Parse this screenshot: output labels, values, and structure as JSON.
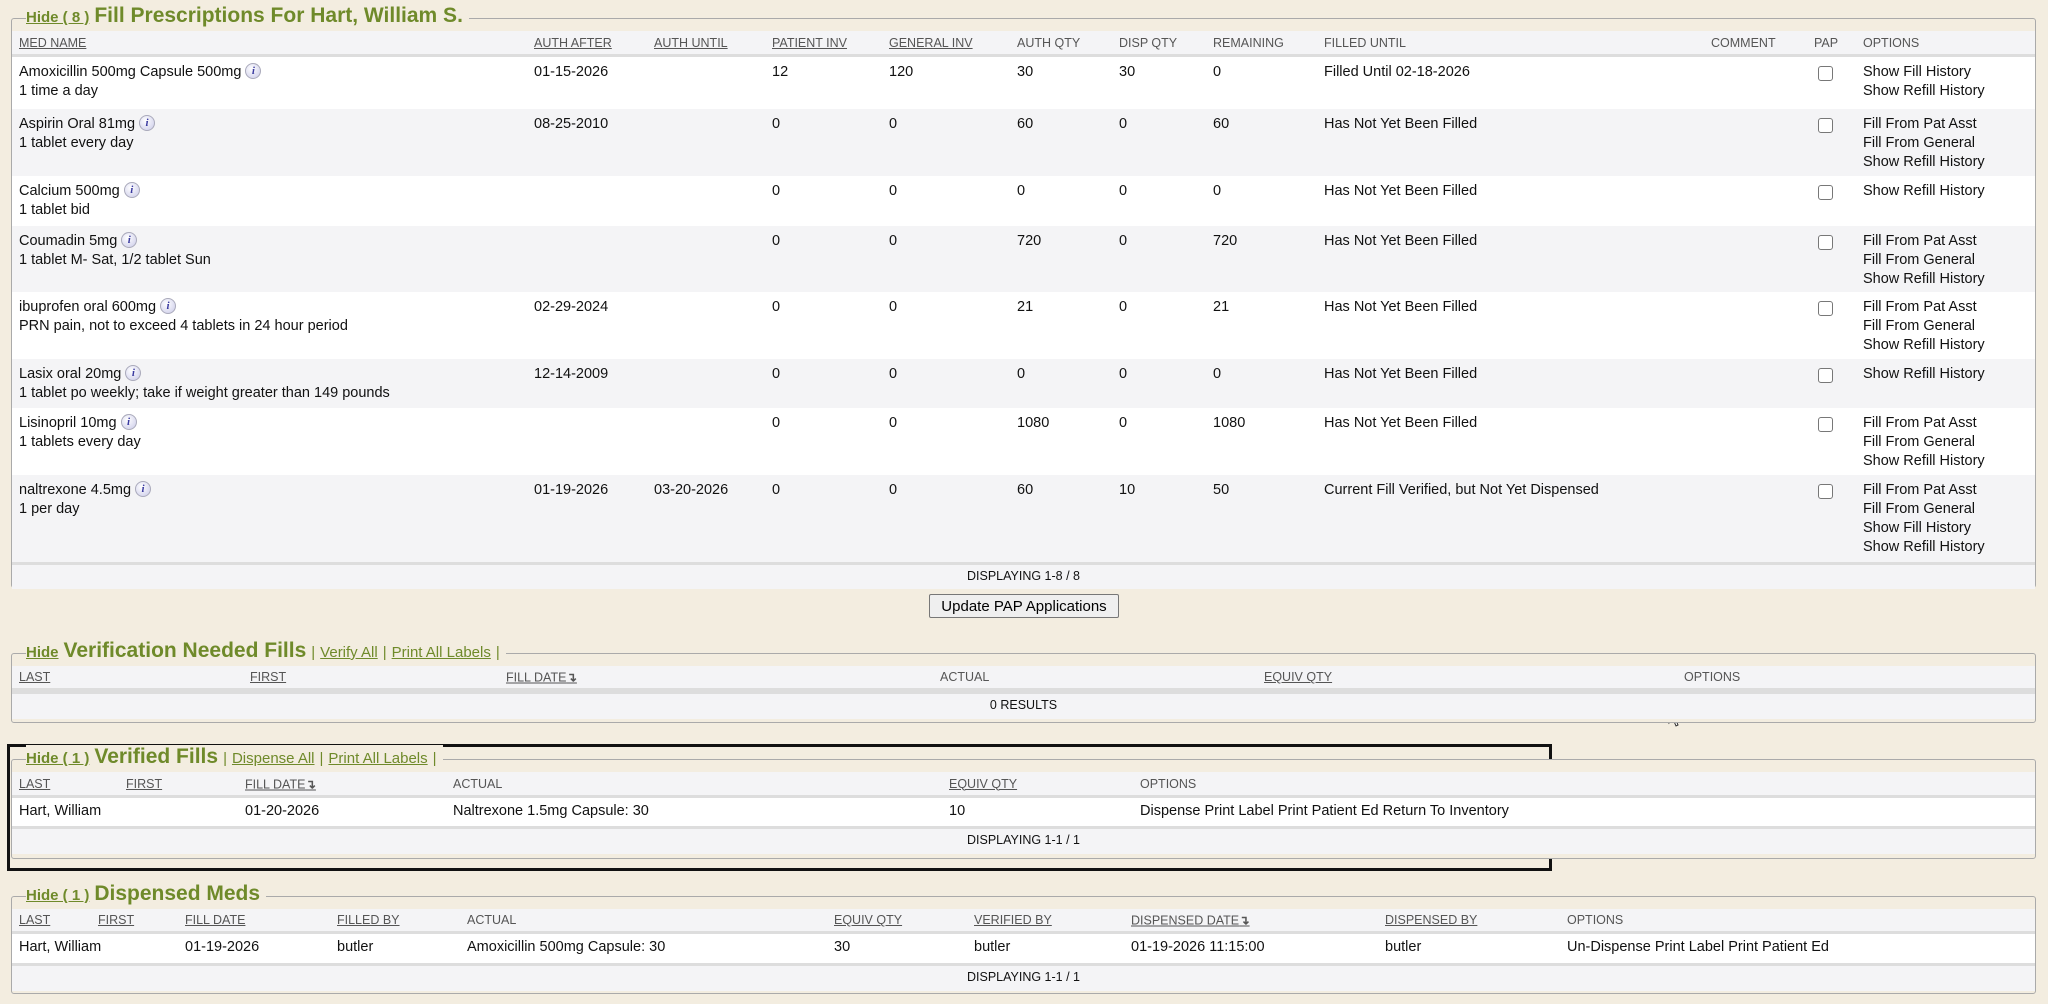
{
  "fill_prescriptions": {
    "hide_label": "Hide ( 8 )",
    "title": "Fill Prescriptions For Hart, William S.",
    "columns": [
      "MED NAME",
      "AUTH AFTER",
      "AUTH UNTIL",
      "PATIENT INV",
      "GENERAL INV",
      "AUTH QTY",
      "DISP QTY",
      "REMAINING",
      "FILLED UNTIL",
      "COMMENT",
      "PAP",
      "OPTIONS"
    ],
    "rows": [
      {
        "med": "Amoxicillin 500mg Capsule 500mg",
        "sig": "1 time a day",
        "auth_after": "01-15-2026",
        "auth_until": "",
        "patient_inv": "12",
        "general_inv": "120",
        "auth_qty": "30",
        "disp_qty": "30",
        "remaining": "0",
        "filled_until": "Filled Until 02-18-2026",
        "comment": "",
        "pap": false,
        "options": [
          "Show Fill History",
          "Show Refill History"
        ]
      },
      {
        "med": "Aspirin Oral 81mg",
        "sig": "1 tablet every day",
        "auth_after": "08-25-2010",
        "auth_until": "",
        "patient_inv": "0",
        "general_inv": "0",
        "auth_qty": "60",
        "disp_qty": "0",
        "remaining": "60",
        "filled_until": "Has Not Yet Been Filled",
        "comment": "",
        "pap": false,
        "options": [
          "Fill From Pat Asst",
          "Fill From General",
          "Show Refill History"
        ]
      },
      {
        "med": "Calcium 500mg",
        "sig": "1 tablet bid",
        "auth_after": "",
        "auth_until": "",
        "patient_inv": "0",
        "general_inv": "0",
        "auth_qty": "0",
        "disp_qty": "0",
        "remaining": "0",
        "filled_until": "Has Not Yet Been Filled",
        "comment": "",
        "pap": false,
        "options": [
          "Show Refill History"
        ]
      },
      {
        "med": "Coumadin 5mg",
        "sig": "1 tablet M- Sat, 1/2 tablet Sun",
        "auth_after": "",
        "auth_until": "",
        "patient_inv": "0",
        "general_inv": "0",
        "auth_qty": "720",
        "disp_qty": "0",
        "remaining": "720",
        "filled_until": "Has Not Yet Been Filled",
        "comment": "",
        "pap": false,
        "options": [
          "Fill From Pat Asst",
          "Fill From General",
          "Show Refill History"
        ]
      },
      {
        "med": "ibuprofen oral 600mg",
        "sig": "PRN pain, not to exceed 4 tablets in 24 hour period",
        "auth_after": "02-29-2024",
        "auth_until": "",
        "patient_inv": "0",
        "general_inv": "0",
        "auth_qty": "21",
        "disp_qty": "0",
        "remaining": "21",
        "filled_until": "Has Not Yet Been Filled",
        "comment": "",
        "pap": false,
        "options": [
          "Fill From Pat Asst",
          "Fill From General",
          "Show Refill History"
        ]
      },
      {
        "med": "Lasix oral 20mg",
        "sig": "1 tablet po weekly; take if weight greater than 149 pounds",
        "auth_after": "12-14-2009",
        "auth_until": "",
        "patient_inv": "0",
        "general_inv": "0",
        "auth_qty": "0",
        "disp_qty": "0",
        "remaining": "0",
        "filled_until": "Has Not Yet Been Filled",
        "comment": "",
        "pap": false,
        "options": [
          "Show Refill History"
        ]
      },
      {
        "med": "Lisinopril 10mg",
        "sig": "1 tablets every day",
        "auth_after": "",
        "auth_until": "",
        "patient_inv": "0",
        "general_inv": "0",
        "auth_qty": "1080",
        "disp_qty": "0",
        "remaining": "1080",
        "filled_until": "Has Not Yet Been Filled",
        "comment": "",
        "pap": false,
        "options": [
          "Fill From Pat Asst",
          "Fill From General",
          "Show Refill History"
        ]
      },
      {
        "med": "naltrexone 4.5mg",
        "sig": "1 per day",
        "auth_after": "01-19-2026",
        "auth_until": "03-20-2026",
        "patient_inv": "0",
        "general_inv": "0",
        "auth_qty": "60",
        "disp_qty": "10",
        "remaining": "50",
        "filled_until": "Current Fill Verified, but Not Yet Dispensed",
        "comment": "",
        "pap": false,
        "options": [
          "Fill From Pat Asst",
          "Fill From General",
          "Show Fill History",
          "Show Refill History"
        ]
      }
    ],
    "footer": "DISPLAYING 1-8 / 8"
  },
  "update_pap_button": "Update PAP Applications",
  "verification_needed": {
    "hide_label": "Hide",
    "title": "Verification Needed Fills",
    "links": [
      "Verify All",
      "Print All Labels"
    ],
    "columns": [
      "LAST",
      "FIRST",
      "FILL DATE",
      "ACTUAL",
      "EQUIV QTY",
      "OPTIONS"
    ],
    "rows": [],
    "footer": "0 RESULTS"
  },
  "verified_fills": {
    "hide_label": "Hide ( 1 )",
    "title": "Verified Fills",
    "links": [
      "Dispense All",
      "Print All Labels"
    ],
    "columns": [
      "LAST",
      "FIRST",
      "FILL DATE",
      "ACTUAL",
      "EQUIV QTY",
      "OPTIONS"
    ],
    "rows": [
      {
        "cells": [
          "Hart, William",
          "",
          "01-20-2026",
          "Naltrexone 1.5mg Capsule: 30",
          "10"
        ],
        "options": [
          "Dispense",
          "Print Label",
          "Print Patient Ed",
          "Return To Inventory"
        ]
      }
    ],
    "footer": "DISPLAYING 1-1 / 1"
  },
  "dispensed_meds": {
    "hide_label": "Hide ( 1 )",
    "title": "Dispensed Meds",
    "links": [],
    "columns": [
      "LAST",
      "FIRST",
      "FILL DATE",
      "FILLED BY",
      "ACTUAL",
      "EQUIV QTY",
      "VERIFIED BY",
      "DISPENSED DATE",
      "DISPENSED BY",
      "OPTIONS"
    ],
    "rows": [
      {
        "cells": [
          "Hart, William",
          "",
          "01-19-2026",
          "butler",
          "Amoxicillin 500mg Capsule: 30",
          "30",
          "butler",
          "01-19-2026 11:15:00",
          "butler"
        ],
        "options": [
          "Un-Dispense",
          "Print Label",
          "Print Patient Ed"
        ]
      }
    ],
    "footer": "DISPLAYING 1-1 / 1"
  },
  "colors": {
    "accent": "#6f8a2a",
    "background": "#f3ede0",
    "row_alt": "#f4f4f6"
  }
}
